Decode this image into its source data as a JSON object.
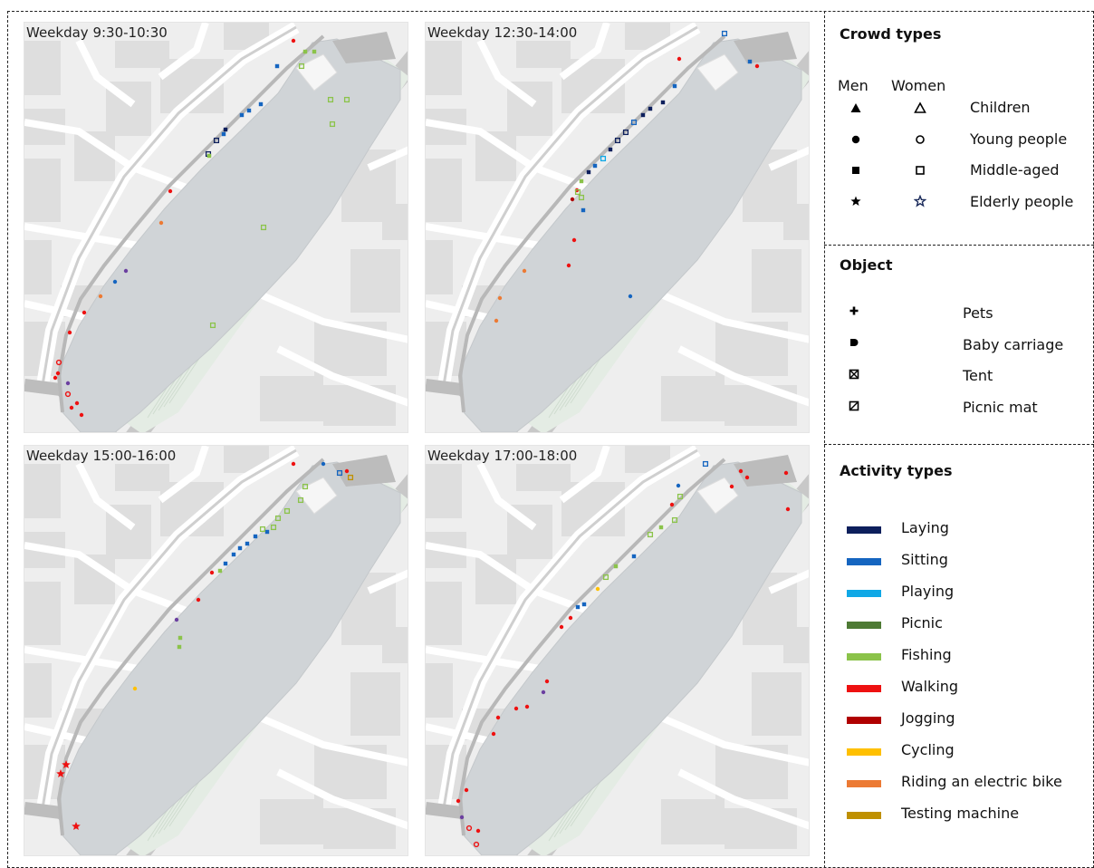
{
  "maps": [
    {
      "title": "Weekday 9:30-10:30"
    },
    {
      "title": "Weekday 12:30-14:00"
    },
    {
      "title": "Weekday 15:00-16:00"
    },
    {
      "title": "Weekday 17:00-18:00"
    }
  ],
  "crowd": {
    "title": "Crowd types",
    "men_label": "Men",
    "women_label": "Women",
    "rows": [
      {
        "label": "Children",
        "men_icon": "filled-triangle-icon",
        "women_icon": "outline-triangle-icon"
      },
      {
        "label": "Young people",
        "men_icon": "filled-circle-icon",
        "women_icon": "outline-circle-icon"
      },
      {
        "label": "Middle-aged",
        "men_icon": "filled-square-icon",
        "women_icon": "outline-square-icon"
      },
      {
        "label": "Elderly people",
        "men_icon": "filled-star-icon",
        "women_icon": "outline-star-icon"
      }
    ]
  },
  "object": {
    "title": "Object",
    "rows": [
      {
        "label": "Pets",
        "icon": "plus-icon"
      },
      {
        "label": "Baby carriage",
        "icon": "baby-carriage-icon"
      },
      {
        "label": "Tent",
        "icon": "tent-icon"
      },
      {
        "label": "Picnic mat",
        "icon": "picnic-mat-icon"
      }
    ]
  },
  "activity": {
    "title": "Activity types",
    "rows": [
      {
        "label": "Laying",
        "color": "#0d1f5c"
      },
      {
        "label": "Sitting",
        "color": "#1565c0"
      },
      {
        "label": "Playing",
        "color": "#10a8e6"
      },
      {
        "label": "Picnic",
        "color": "#4e7a34"
      },
      {
        "label": "Fishing",
        "color": "#8bc34a"
      },
      {
        "label": "Walking",
        "color": "#ee1111"
      },
      {
        "label": "Jogging",
        "color": "#b00000"
      },
      {
        "label": "Cycling",
        "color": "#ffc000"
      },
      {
        "label": "Riding an electric bike",
        "color": "#ec7a34"
      },
      {
        "label": "Testing machine",
        "color": "#bf9000"
      }
    ]
  }
}
